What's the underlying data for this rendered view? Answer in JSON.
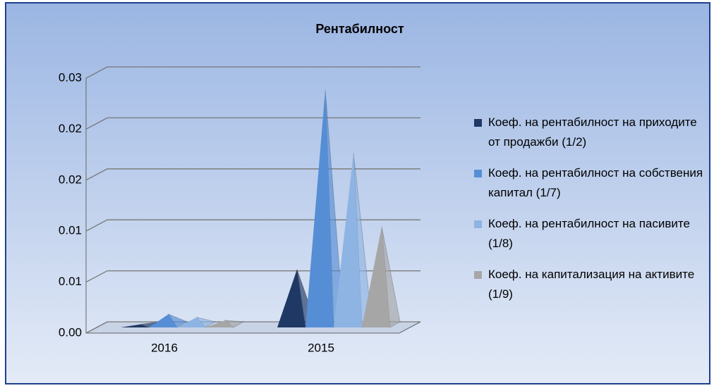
{
  "chart_data": {
    "type": "pyramid",
    "title": "Рентабилност",
    "categories": [
      "2016",
      "2015"
    ],
    "series": [
      {
        "name": "Коеф. на рентабилност на приходите от продажби (1/2)",
        "color": "#1f3864",
        "values": [
          0.0003,
          0.0057
        ]
      },
      {
        "name": "Коеф. на рентабилност на собствения капитал (1/7)",
        "color": "#558ed5",
        "values": [
          0.0013,
          0.0233
        ]
      },
      {
        "name": "Коеф. на рентабилност на пасивите (1/8)",
        "color": "#8eb4e3",
        "values": [
          0.001,
          0.0171
        ]
      },
      {
        "name": "Коеф. на капитализация на активите (1/9)",
        "color": "#a6a6a6",
        "values": [
          0.0007,
          0.0099
        ]
      }
    ],
    "ylim": [
      0,
      0.025
    ],
    "yticks": [
      {
        "value": 0,
        "label": "0.00"
      },
      {
        "value": 0.005,
        "label": "0.01"
      },
      {
        "value": 0.01,
        "label": "0.01"
      },
      {
        "value": 0.015,
        "label": "0.02"
      },
      {
        "value": 0.02,
        "label": "0.02"
      },
      {
        "value": 0.025,
        "label": "0.03"
      }
    ],
    "grid": true,
    "legend": "right"
  }
}
